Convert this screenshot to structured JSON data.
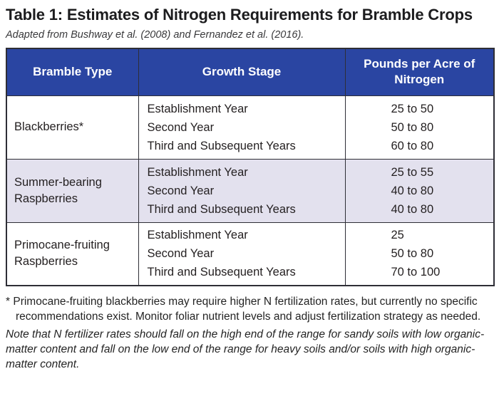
{
  "title": "Table 1: Estimates of Nitrogen Requirements for Bramble Crops",
  "subtitle": "Adapted from Bushway et al. (2008) and Fernandez et al. (2016).",
  "colors": {
    "header_bg": "#2a45a2",
    "header_text": "#ffffff",
    "shaded_row_bg": "#e3e1ee",
    "border": "#2e2e36",
    "body_text": "#231f20"
  },
  "table": {
    "columns": [
      "Bramble Type",
      "Growth Stage",
      "Pounds per Acre of Nitrogen"
    ],
    "rows": [
      {
        "bramble_type": "Blackberries*",
        "stages": [
          "Establishment Year",
          "Second Year",
          "Third and Subsequent Years"
        ],
        "values": [
          "25 to 50",
          "50 to 80",
          "60 to 80"
        ]
      },
      {
        "bramble_type": "Summer-bearing Raspberries",
        "stages": [
          "Establishment Year",
          "Second Year",
          "Third and Subsequent Years"
        ],
        "values": [
          "25 to 55",
          "40 to 80",
          "40 to 80"
        ]
      },
      {
        "bramble_type": "Primocane-fruiting Raspberries",
        "stages": [
          "Establishment Year",
          "Second Year",
          "Third and Subsequent Years"
        ],
        "values": [
          "25",
          "50 to 80",
          "70 to 100"
        ]
      }
    ]
  },
  "notes": {
    "asterisk_marker": "*",
    "asterisk_note": "Primocane-fruiting blackberries may require higher N fertilization rates, but currently no specific recommendations exist. Monitor foliar nutrient levels and adjust fertilization strategy as needed.",
    "italic_note": "Note that N fertilizer rates should fall on the high end of the range for sandy soils with low organic-matter content and fall on the low end of the range for heavy soils and/or soils with high organic-matter content."
  }
}
